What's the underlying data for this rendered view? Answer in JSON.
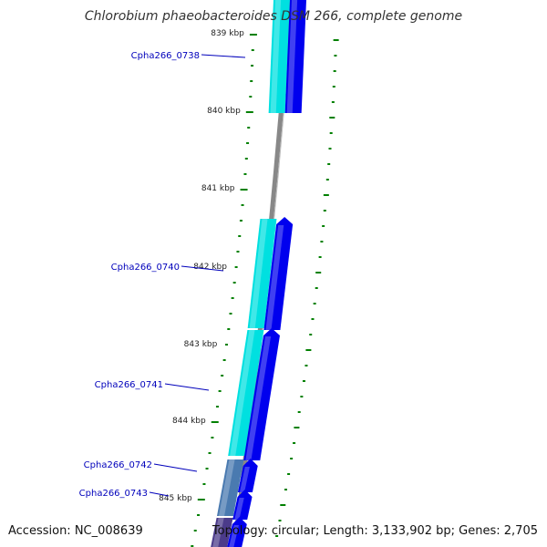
{
  "title": "Chlorobium phaeobacteroides DSM 266, complete genome",
  "footer": {
    "accession": "Accession: NC_008639",
    "topology": "Topology: circular; Length: 3,133,902 bp; Genes: 2,705"
  },
  "colors": {
    "backbone": "#888888",
    "tick": "#008000",
    "gene_label": "#0000bb",
    "cds_forward": "#0000ee",
    "cds_reverse": "#00e0e0",
    "cds_other": "#4a7ab0",
    "cds_dark": "#4b3b8a"
  },
  "ruler": {
    "unit": "kbp",
    "labels": [
      "839 kbp",
      "840 kbp",
      "841 kbp",
      "842 kbp",
      "843 kbp",
      "844 kbp",
      "845 kbp"
    ]
  },
  "genes": [
    {
      "name": "Cpha266_0738"
    },
    {
      "name": "Cpha266_0740"
    },
    {
      "name": "Cpha266_0741"
    },
    {
      "name": "Cpha266_0742"
    },
    {
      "name": "Cpha266_0743"
    }
  ]
}
